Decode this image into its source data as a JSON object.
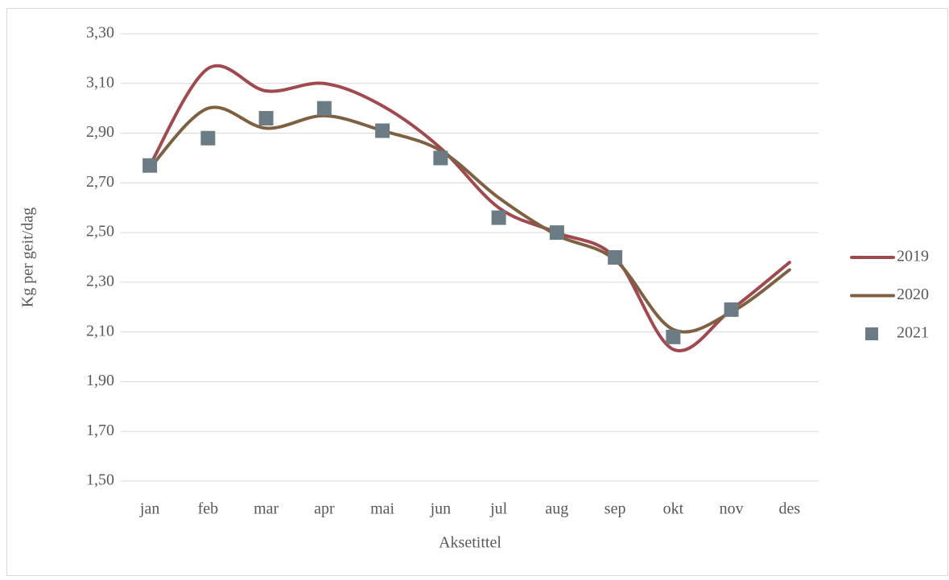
{
  "chart_data": {
    "type": "line",
    "x_label": "Aksetittel",
    "y_label": "Kg per geit/dag",
    "categories": [
      "jan",
      "feb",
      "mar",
      "apr",
      "mai",
      "jun",
      "jul",
      "aug",
      "sep",
      "okt",
      "nov",
      "des"
    ],
    "series": [
      {
        "name": "2019",
        "color": "#a0494f",
        "style": "smooth-line",
        "values": [
          2.77,
          3.16,
          3.07,
          3.1,
          3.01,
          2.84,
          2.6,
          2.5,
          2.4,
          2.03,
          2.19,
          2.38
        ]
      },
      {
        "name": "2020",
        "color": "#7e6143",
        "style": "smooth-line",
        "values": [
          2.76,
          3.0,
          2.92,
          2.97,
          2.91,
          2.83,
          2.64,
          2.49,
          2.39,
          2.11,
          2.18,
          2.35
        ]
      },
      {
        "name": "2021",
        "color": "#6c7c85",
        "style": "square-marker",
        "values": [
          2.77,
          2.88,
          2.96,
          3.0,
          2.91,
          2.8,
          2.56,
          2.5,
          2.4,
          2.08,
          2.19,
          null
        ]
      }
    ],
    "ylim": [
      1.5,
      3.3
    ],
    "yticks": [
      {
        "value": 1.5,
        "label": "1,50"
      },
      {
        "value": 1.7,
        "label": "1,70"
      },
      {
        "value": 1.9,
        "label": "1,90"
      },
      {
        "value": 2.1,
        "label": "2,10"
      },
      {
        "value": 2.3,
        "label": "2,30"
      },
      {
        "value": 2.5,
        "label": "2,50"
      },
      {
        "value": 2.7,
        "label": "2,70"
      },
      {
        "value": 2.9,
        "label": "2,90"
      },
      {
        "value": 3.1,
        "label": "3,10"
      },
      {
        "value": 3.3,
        "label": "3,30"
      }
    ],
    "grid": true,
    "legend": "right"
  }
}
